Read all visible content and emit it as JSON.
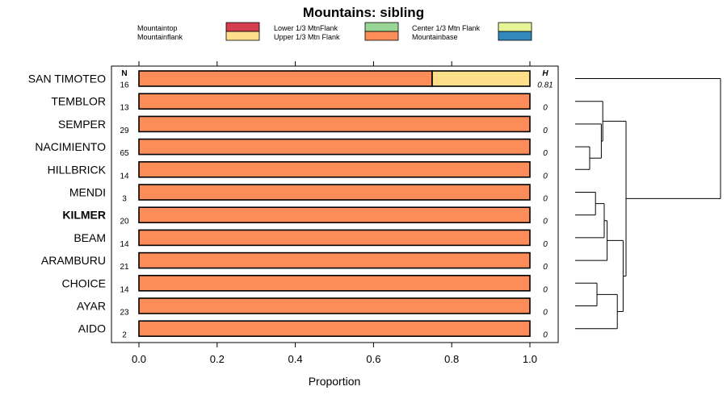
{
  "chart_data": {
    "type": "bar",
    "orientation": "horizontal",
    "stacked": true,
    "title": "Mountains: sibling",
    "xlabel": "Proportion",
    "ylabel": "",
    "xlim": [
      0,
      1
    ],
    "x_ticks": [
      "0.0",
      "0.2",
      "0.4",
      "0.6",
      "0.8",
      "1.0"
    ],
    "grid": false,
    "legend_position": "top",
    "n_header": "N",
    "h_header": "H",
    "legend": [
      {
        "name": "Mountaintop",
        "color": "#D53E4F"
      },
      {
        "name": "Mountainflank",
        "color": "#FEE08B"
      },
      {
        "name": "Lower 1/3 MtnFlank",
        "color": "#99D594"
      },
      {
        "name": "Upper 1/3 Mtn Flank",
        "color": "#FC8D59"
      },
      {
        "name": "Center 1/3 Mtn Flank",
        "color": "#E6F598"
      },
      {
        "name": "Mountainbase",
        "color": "#3288BD"
      }
    ],
    "categories": [
      "SAN TIMOTEO",
      "TEMBLOR",
      "SEMPER",
      "NACIMIENTO",
      "HILLBRICK",
      "MENDI",
      "KILMER",
      "BEAM",
      "ARAMBURU",
      "CHOICE",
      "AYAR",
      "AIDO"
    ],
    "highlighted_category": "KILMER",
    "n_values": [
      "16",
      "13",
      "29",
      "65",
      "14",
      "3",
      "20",
      "14",
      "21",
      "14",
      "23",
      "2"
    ],
    "h_values": [
      "0.81",
      "0",
      "0",
      "0",
      "0",
      "0",
      "0",
      "0",
      "0",
      "0",
      "0",
      "0"
    ],
    "series": [
      {
        "name": "Upper 1/3 Mtn Flank",
        "color": "#FC8D59",
        "values": [
          0.75,
          1,
          1,
          1,
          1,
          1,
          1,
          1,
          1,
          1,
          1,
          1
        ]
      },
      {
        "name": "Mountainflank",
        "color": "#FEE08B",
        "values": [
          0.25,
          0,
          0,
          0,
          0,
          0,
          0,
          0,
          0,
          0,
          0,
          0
        ]
      }
    ],
    "dendrogram": {
      "description": "hierarchical clustering of the rows",
      "merges": [
        {
          "id": "m1",
          "children": [
            "NACIMIENTO",
            "HILLBRICK"
          ],
          "height": 0.1
        },
        {
          "id": "m2",
          "children": [
            "SEMPER",
            "m1"
          ],
          "height": 0.18
        },
        {
          "id": "m3",
          "children": [
            "TEMBLOR",
            "m2"
          ],
          "height": 0.19
        },
        {
          "id": "m4",
          "children": [
            "MENDI",
            "KILMER"
          ],
          "height": 0.14
        },
        {
          "id": "m5",
          "children": [
            "m4",
            "BEAM"
          ],
          "height": 0.2
        },
        {
          "id": "m6",
          "children": [
            "m5",
            "ARAMBURU"
          ],
          "height": 0.22
        },
        {
          "id": "m7",
          "children": [
            "CHOICE",
            "AYAR"
          ],
          "height": 0.15
        },
        {
          "id": "m8",
          "children": [
            "m7",
            "AIDO"
          ],
          "height": 0.29
        },
        {
          "id": "m9",
          "children": [
            "m6",
            "m8"
          ],
          "height": 0.33
        },
        {
          "id": "m10",
          "children": [
            "m3",
            "m9"
          ],
          "height": 0.35
        },
        {
          "id": "m11",
          "children": [
            "SAN TIMOTEO",
            "m10"
          ],
          "height": 1.0
        }
      ]
    }
  }
}
